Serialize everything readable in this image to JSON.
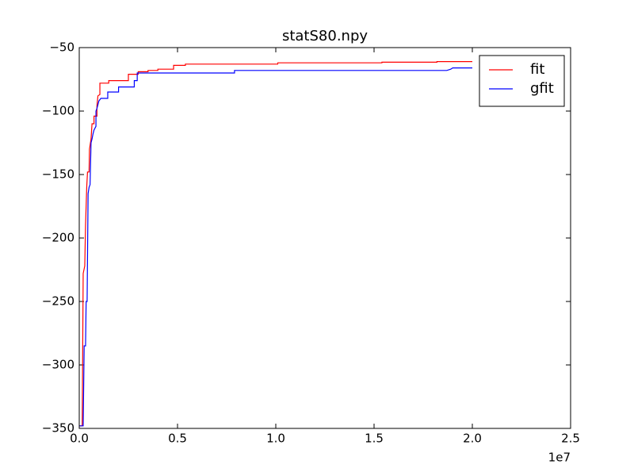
{
  "chart_data": {
    "type": "line",
    "title": "statS80.npy",
    "x_offset_label": "1e7",
    "xlim": [
      0,
      25000000
    ],
    "xticks": [
      {
        "value": 0,
        "label": "0.0"
      },
      {
        "value": 5000000,
        "label": "0.5"
      },
      {
        "value": 10000000,
        "label": "1.0"
      },
      {
        "value": 15000000,
        "label": "1.5"
      },
      {
        "value": 20000000,
        "label": "2.0"
      },
      {
        "value": 25000000,
        "label": "2.5"
      }
    ],
    "ylim": [
      -350,
      -50
    ],
    "yticks": [
      {
        "value": -350,
        "label": "−350"
      },
      {
        "value": -300,
        "label": "−300"
      },
      {
        "value": -250,
        "label": "−250"
      },
      {
        "value": -200,
        "label": "−200"
      },
      {
        "value": -150,
        "label": "−150"
      },
      {
        "value": -100,
        "label": "−100"
      },
      {
        "value": -50,
        "label": "−50"
      }
    ],
    "legend": "upper right",
    "series": [
      {
        "name": "fit",
        "color": "#ff0000",
        "x": [
          0,
          150000,
          200000,
          280000,
          320000,
          380000,
          420000,
          500000,
          520000,
          600000,
          650000,
          750000,
          750000,
          900000,
          900000,
          950000,
          1050000,
          1050000,
          1500000,
          1500000,
          2500000,
          2500000,
          3000000,
          3000000,
          3500000,
          3500000,
          4000000,
          4000000,
          4800000,
          4800000,
          5400000,
          5400000,
          10100000,
          10100000,
          15400000,
          15400000,
          18200000,
          18200000,
          20000000
        ],
        "values": [
          -348,
          -348,
          -228,
          -222,
          -190,
          -160,
          -148,
          -148,
          -130,
          -122,
          -110,
          -110,
          -104,
          -104,
          -96,
          -88,
          -87,
          -78,
          -78,
          -76,
          -76,
          -71,
          -71,
          -69,
          -69,
          -68,
          -68,
          -67,
          -67,
          -64,
          -64,
          -63,
          -63,
          -62,
          -62,
          -61.5,
          -61.5,
          -61,
          -61
        ]
      },
      {
        "name": "gfit",
        "color": "#0000ff",
        "x": [
          0,
          200000,
          250000,
          320000,
          350000,
          400000,
          450000,
          500000,
          550000,
          600000,
          650000,
          700000,
          750000,
          850000,
          850000,
          900000,
          950000,
          1000000,
          1100000,
          1450000,
          1450000,
          2000000,
          2000000,
          2800000,
          2800000,
          2950000,
          2950000,
          7900000,
          7900000,
          18700000,
          18900000,
          19000000,
          20000000
        ],
        "values": [
          -348,
          -348,
          -285,
          -285,
          -250,
          -250,
          -165,
          -160,
          -158,
          -125,
          -122,
          -118,
          -115,
          -112,
          -100,
          -98,
          -95,
          -92,
          -90,
          -90,
          -85,
          -85,
          -81,
          -81,
          -76,
          -76,
          -70,
          -70,
          -68,
          -68,
          -67,
          -66,
          -66
        ]
      }
    ]
  }
}
